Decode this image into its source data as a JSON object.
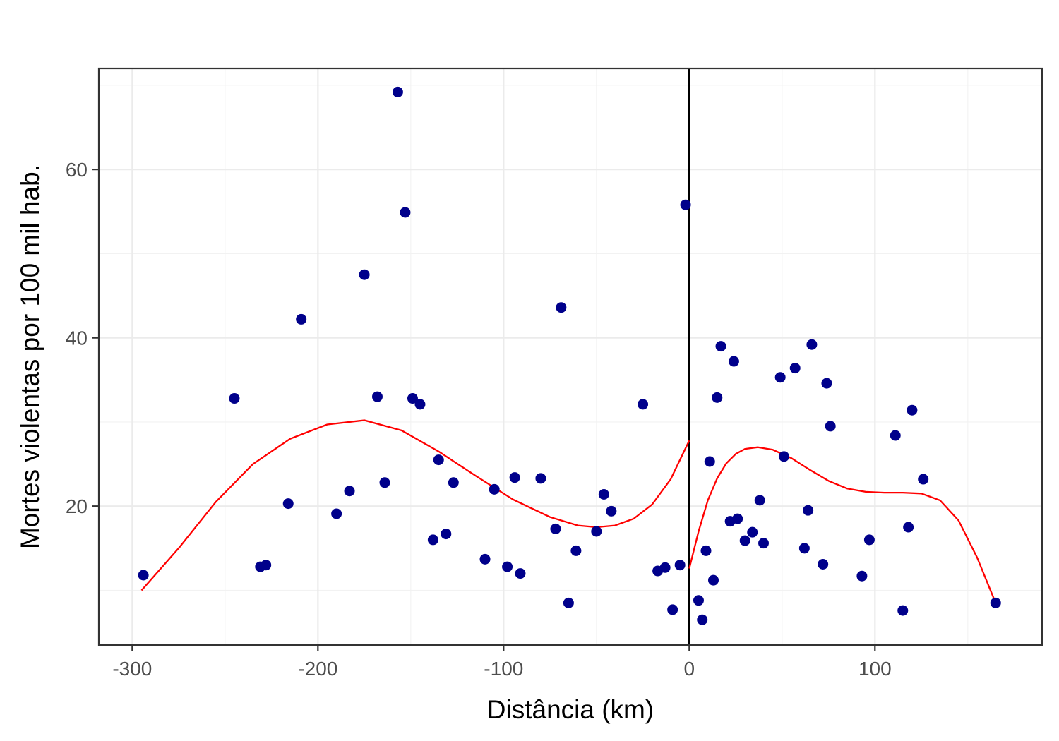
{
  "chart_data": {
    "type": "scatter",
    "title": "",
    "xlabel": "Distância (km)",
    "ylabel": "Mortes violentas por 100 mil hab.",
    "xlim": [
      -318,
      190
    ],
    "ylim": [
      3.5,
      72
    ],
    "x_ticks": [
      -300,
      -200,
      -100,
      0,
      100
    ],
    "x_tick_labels": [
      "-300",
      "-200",
      "-100",
      "0",
      "100"
    ],
    "y_ticks": [
      20,
      40,
      60
    ],
    "y_tick_labels": [
      "20",
      "40",
      "60"
    ],
    "grid": true,
    "legend": "none",
    "cutoff": 0,
    "colors": {
      "points": "#00008B",
      "fit": "#FF0000",
      "cutoff_line": "#000000",
      "grid_major": "#EBEBEB",
      "grid_minor": "#F2F2F2",
      "panel_border": "#333333"
    },
    "points": [
      {
        "x": -294,
        "y": 11.8
      },
      {
        "x": -245,
        "y": 32.8
      },
      {
        "x": -231,
        "y": 12.8
      },
      {
        "x": -228,
        "y": 13.0
      },
      {
        "x": -216,
        "y": 20.3
      },
      {
        "x": -209,
        "y": 42.2
      },
      {
        "x": -190,
        "y": 19.1
      },
      {
        "x": -183,
        "y": 21.8
      },
      {
        "x": -175,
        "y": 47.5
      },
      {
        "x": -168,
        "y": 33.0
      },
      {
        "x": -164,
        "y": 22.8
      },
      {
        "x": -157,
        "y": 69.2
      },
      {
        "x": -153,
        "y": 54.9
      },
      {
        "x": -149,
        "y": 32.8
      },
      {
        "x": -145,
        "y": 32.1
      },
      {
        "x": -138,
        "y": 16.0
      },
      {
        "x": -135,
        "y": 25.5
      },
      {
        "x": -131,
        "y": 16.7
      },
      {
        "x": -127,
        "y": 22.8
      },
      {
        "x": -110,
        "y": 13.7
      },
      {
        "x": -105,
        "y": 22.0
      },
      {
        "x": -98,
        "y": 12.8
      },
      {
        "x": -94,
        "y": 23.4
      },
      {
        "x": -91,
        "y": 12.0
      },
      {
        "x": -80,
        "y": 23.3
      },
      {
        "x": -72,
        "y": 17.3
      },
      {
        "x": -69,
        "y": 43.6
      },
      {
        "x": -65,
        "y": 8.5
      },
      {
        "x": -61,
        "y": 14.7
      },
      {
        "x": -50,
        "y": 17.0
      },
      {
        "x": -46,
        "y": 21.4
      },
      {
        "x": -42,
        "y": 19.4
      },
      {
        "x": -25,
        "y": 32.1
      },
      {
        "x": -17,
        "y": 12.3
      },
      {
        "x": -13,
        "y": 12.7
      },
      {
        "x": -9,
        "y": 7.7
      },
      {
        "x": -5,
        "y": 13.0
      },
      {
        "x": -2,
        "y": 55.8
      },
      {
        "x": 5,
        "y": 8.8
      },
      {
        "x": 7,
        "y": 6.5
      },
      {
        "x": 9,
        "y": 14.7
      },
      {
        "x": 11,
        "y": 25.3
      },
      {
        "x": 13,
        "y": 11.2
      },
      {
        "x": 15,
        "y": 32.9
      },
      {
        "x": 17,
        "y": 39.0
      },
      {
        "x": 22,
        "y": 18.2
      },
      {
        "x": 24,
        "y": 37.2
      },
      {
        "x": 26,
        "y": 18.5
      },
      {
        "x": 30,
        "y": 15.9
      },
      {
        "x": 34,
        "y": 16.9
      },
      {
        "x": 38,
        "y": 20.7
      },
      {
        "x": 40,
        "y": 15.6
      },
      {
        "x": 49,
        "y": 35.3
      },
      {
        "x": 51,
        "y": 25.9
      },
      {
        "x": 57,
        "y": 36.4
      },
      {
        "x": 62,
        "y": 15.0
      },
      {
        "x": 64,
        "y": 19.5
      },
      {
        "x": 66,
        "y": 39.2
      },
      {
        "x": 72,
        "y": 13.1
      },
      {
        "x": 74,
        "y": 34.6
      },
      {
        "x": 76,
        "y": 29.5
      },
      {
        "x": 93,
        "y": 11.7
      },
      {
        "x": 97,
        "y": 16.0
      },
      {
        "x": 111,
        "y": 28.4
      },
      {
        "x": 115,
        "y": 7.6
      },
      {
        "x": 118,
        "y": 17.5
      },
      {
        "x": 120,
        "y": 31.4
      },
      {
        "x": 126,
        "y": 23.2
      },
      {
        "x": 165,
        "y": 8.5
      }
    ],
    "fit_left": {
      "x": [
        -295,
        -275,
        -255,
        -235,
        -215,
        -195,
        -175,
        -155,
        -135,
        -115,
        -95,
        -75,
        -60,
        -50,
        -40,
        -30,
        -20,
        -10,
        0
      ],
      "y": [
        10.0,
        15.0,
        20.5,
        25.0,
        28.0,
        29.7,
        30.2,
        29.0,
        26.5,
        23.6,
        20.8,
        18.7,
        17.7,
        17.5,
        17.7,
        18.5,
        20.2,
        23.2,
        27.8
      ]
    },
    "fit_right": {
      "x": [
        0,
        5,
        10,
        15,
        20,
        25,
        30,
        37,
        45,
        55,
        65,
        75,
        85,
        95,
        105,
        115,
        125,
        135,
        145,
        155,
        160,
        165
      ],
      "y": [
        12.6,
        17.0,
        20.7,
        23.3,
        25.1,
        26.2,
        26.8,
        27.0,
        26.7,
        25.7,
        24.3,
        23.0,
        22.1,
        21.7,
        21.6,
        21.6,
        21.5,
        20.7,
        18.3,
        13.9,
        11.2,
        8.5
      ]
    }
  }
}
